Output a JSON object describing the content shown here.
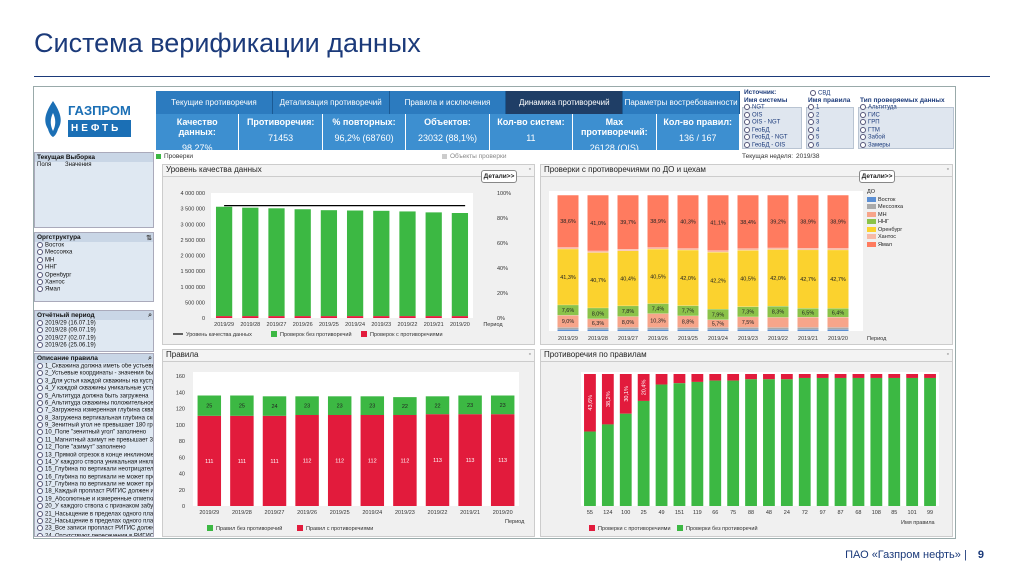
{
  "slide": {
    "title": "Система верификации данных",
    "footer": "ПАО «Газпром нефть»",
    "page": "9"
  },
  "logo": {
    "line1": "ГАЗПРОМ",
    "line2": "НЕФТЬ"
  },
  "tabs": [
    "Текущие противоречия",
    "Детализация противоречий",
    "Правила и исключения",
    "Динамика противоречий",
    "Параметры востребованности"
  ],
  "kpis": [
    {
      "label": "Качество данных:",
      "value": "98,27%"
    },
    {
      "label": "Противоречия:",
      "value": "71453"
    },
    {
      "label": "% повторных:",
      "value": "96,2% (68760)"
    },
    {
      "label": "Объектов:",
      "value": "23032 (88,1%)"
    },
    {
      "label": "Кол-во систем:",
      "value": "11"
    },
    {
      "label": "Max противоречий:",
      "value": "26128 (OIS)"
    },
    {
      "label": "Кол-во правил:",
      "value": "136 / 167"
    }
  ],
  "filters": {
    "source": {
      "label": "Источник:",
      "options": [
        "СВД"
      ]
    },
    "system": {
      "label": "Имя системы",
      "options": [
        "NGT",
        "OIS",
        "OIS - NGT",
        "ГеоБД",
        "ГеоБД - NGT",
        "ГеоБД - OIS"
      ]
    },
    "rule": {
      "label": "Имя правила",
      "options": [
        "1",
        "2",
        "3",
        "4",
        "5",
        "6"
      ]
    },
    "type": {
      "label": "Тип проверяемых данных",
      "options": [
        "Альтитуда",
        "ГИС",
        "ГРП",
        "ГТМ",
        "Забой",
        "Замеры"
      ]
    }
  },
  "status": {
    "checks": "Проверки",
    "objects": "Объекты проверки",
    "week_label": "Текущая неделя:",
    "week": "2019/38"
  },
  "left": {
    "current": {
      "title": "Текущая Выборка",
      "col1": "Поля",
      "col2": "Значения"
    },
    "org": {
      "title": "Оргструктура",
      "items": [
        "Восток",
        "Мессояха",
        "МН",
        "ННГ",
        "Оренбург",
        "Хантос",
        "Ямал"
      ]
    },
    "period": {
      "title": "Отчётный период",
      "items": [
        "2019/29 (16.07.19)",
        "2019/28 (09.07.19)",
        "2019/27 (02.07.19)",
        "2019/26 (25.06.19)"
      ]
    },
    "rules": {
      "title": "Описание правила",
      "items": [
        "1_Скважина должна иметь обе устьевые",
        "2_Устьевые координаты - значения был",
        "3_Для устья каждой скважины на кусту",
        "4_У каждой скважины уникальные устье",
        "5_Альтитуда должна быть загружена",
        "6_Альтитуда скважины положительное",
        "7_Загружена измеренная глубина сква",
        "8_Загружена вертикальная глубина сква",
        "9_Зенитный угол не превышает 180 гра",
        "10_Поле \"зенитный угол\" заполнено",
        "11_Магнитный азимут не превышает 36",
        "12_Поле \"азимут\" заполнено",
        "13_Прямой отрезок в конце инклиномет",
        "14_У каждого ствола уникальная инклин",
        "15_Глубина по вертикали неотрицатель",
        "16_Глубина по вертикали не может прев",
        "17_Глубина по вертикали не может прев",
        "18_Каждый пропласт РИГИС должен им",
        "19_Абсолютные и измеренные отметки",
        "20_У каждого ствола с признаком забу",
        "21_Насыщение в пределах одного пласт",
        "22_Насыщение в пределах одного пласт",
        "23_Все записи пропласт РИГИС должны",
        "24_Отсутствуют пересечения в РИГИС",
        "25_Поле сопутствующее заполнено для"
      ]
    }
  },
  "panels": {
    "quality": {
      "title": "Уровень качества данных",
      "details": "Детали>>",
      "legend": [
        "Уровень качества данных",
        "Проверок без противоречий",
        "Проверок с противоречиями"
      ],
      "xaxis": "Период"
    },
    "checks": {
      "title": "Проверки с противоречиями по ДО и цехам",
      "details": "Детали>>",
      "xaxis": "Период",
      "legend_title": "ДО"
    },
    "rules": {
      "title": "Правила",
      "legend": [
        "Правил без противоречий",
        "Правил с противоречиями"
      ],
      "xaxis": "Период"
    },
    "byrule": {
      "title": "Противоречия по правилам",
      "legend": [
        "Проверки с противоречиями",
        "Проверки без противоречий"
      ],
      "xaxis": "Имя правила"
    }
  },
  "chart_data": [
    {
      "type": "bar",
      "title": "Уровень качества данных",
      "categories": [
        "2019/29",
        "2019/28",
        "2019/27",
        "2019/26",
        "2019/25",
        "2019/24",
        "2019/23",
        "2019/22",
        "2019/21",
        "2019/20"
      ],
      "xlabel": "Период",
      "ylim": [
        0,
        4000000
      ],
      "yticks": [
        "0",
        "500 000",
        "1 000 000",
        "1 500 000",
        "2 000 000",
        "2 500 000",
        "3 000 000",
        "3 500 000",
        "4 000 000"
      ],
      "y2ticks": [
        "0%",
        "20%",
        "40%",
        "60%",
        "80%",
        "100%"
      ],
      "series": [
        {
          "name": "Проверок без противоречий",
          "color": "#3cb843",
          "values": [
            3500000,
            3470000,
            3450000,
            3420000,
            3390000,
            3380000,
            3370000,
            3350000,
            3320000,
            3300000
          ]
        },
        {
          "name": "Проверок с противоречиями",
          "color": "#e21b3c",
          "values": [
            60000,
            60000,
            60000,
            60000,
            60000,
            60000,
            60000,
            60000,
            60000,
            60000
          ]
        },
        {
          "name": "Уровень качества данных",
          "color": "#000000",
          "values": [
            98,
            98,
            98,
            98,
            98,
            98,
            98,
            98,
            98,
            98
          ]
        }
      ]
    },
    {
      "type": "bar",
      "title": "Проверки с противоречиями по ДО и цехам",
      "categories": [
        "2019/29",
        "2019/28",
        "2019/27",
        "2019/26",
        "2019/25",
        "2019/24",
        "2019/23",
        "2019/22",
        "2019/21",
        "2019/20"
      ],
      "xlabel": "Период",
      "ylim": [
        0,
        100
      ],
      "series": [
        {
          "name": "Восток",
          "color": "#5b8fd4",
          "values": [
            1.2,
            1.2,
            1.2,
            1.2,
            1.2,
            1.2,
            1.2,
            1.2,
            1.2,
            1.2
          ]
        },
        {
          "name": "Мессояха",
          "color": "#aaaaaa",
          "values": [
            1.5,
            1.5,
            1.5,
            1.5,
            1.5,
            1.5,
            1.5,
            1.5,
            1.5,
            1.5
          ]
        },
        {
          "name": "МН",
          "color": "#f7a58a",
          "values": [
            9.0,
            6.3,
            8.0,
            10.3,
            8.8,
            5.7,
            7.5,
            7.5,
            7.5,
            7.5
          ]
        },
        {
          "name": "ННГ",
          "color": "#8bc34a",
          "values": [
            7.6,
            8.0,
            7.8,
            7.4,
            7.7,
            7.9,
            7.3,
            8.3,
            6.5,
            6.4
          ]
        },
        {
          "name": "Оренбург",
          "color": "#fbd22e",
          "values": [
            41.3,
            40.7,
            40.4,
            40.5,
            42.0,
            42.2,
            40.5,
            42.0,
            42.7,
            42.7
          ]
        },
        {
          "name": "Хантос",
          "color": "#f7b9a6",
          "values": [
            1.2,
            1.2,
            1.2,
            1.2,
            1.2,
            1.2,
            1.2,
            1.2,
            1.2,
            1.2
          ]
        },
        {
          "name": "Ямал",
          "color": "#ff7b5f",
          "values": [
            38.6,
            41.0,
            39.7,
            38.9,
            40.3,
            41.1,
            38.4,
            39.2,
            38.9,
            38.9
          ]
        }
      ],
      "labels": {
        "top": [
          "38,6%",
          "41,0%",
          "39,7%",
          "38,9%",
          "40,3%",
          "41,1%",
          "38,4%",
          "39,2%",
          "38,9%",
          "38,9%"
        ],
        "mid": [
          "41,3%",
          "40,7%",
          "40,4%",
          "40,5%",
          "42,0%",
          "42,2%",
          "40,5%",
          "42,0%",
          "42,7%",
          "42,7%"
        ],
        "green": [
          "7,6%",
          "8,0%",
          "7,8%",
          "7,4%",
          "7,7%",
          "7,9%",
          "7,3%",
          "8,3%",
          "6,5%",
          "6,4%"
        ],
        "pink": [
          "9,0%",
          "6,3%",
          "8,0%",
          "10,3%",
          "8,8%",
          "5,7%",
          "7,5%",
          "",
          "",
          ""
        ]
      }
    },
    {
      "type": "bar",
      "title": "Правила",
      "categories": [
        "2019/29",
        "2019/28",
        "2019/27",
        "2019/26",
        "2019/25",
        "2019/24",
        "2019/23",
        "2019/22",
        "2019/21",
        "2019/20"
      ],
      "xlabel": "Период",
      "ylim": [
        0,
        160
      ],
      "yticks": [
        "0",
        "20",
        "40",
        "60",
        "80",
        "100",
        "120",
        "140",
        "160"
      ],
      "series": [
        {
          "name": "Правил с противоречиями",
          "color": "#e21b3c",
          "values": [
            111,
            111,
            111,
            112,
            112,
            112,
            112,
            113,
            113,
            113
          ]
        },
        {
          "name": "Правил без противоречий",
          "color": "#3cb843",
          "values": [
            25,
            25,
            24,
            23,
            23,
            23,
            22,
            22,
            23,
            23
          ]
        }
      ]
    },
    {
      "type": "bar",
      "title": "Противоречия по правилам",
      "categories": [
        "55",
        "124",
        "100",
        "25",
        "49",
        "151",
        "119",
        "66",
        "75",
        "88",
        "48",
        "24",
        "72",
        "97",
        "87",
        "68",
        "108",
        "85",
        "101",
        "99"
      ],
      "xlabel": "Имя правила",
      "ylim": [
        0,
        100
      ],
      "series": [
        {
          "name": "Проверки с противоречиями",
          "color": "#e21b3c",
          "values": [
            43.6,
            38.2,
            30.1,
            20.4,
            8,
            7,
            6,
            5,
            5,
            4,
            4,
            4,
            3,
            3,
            3,
            3,
            3,
            3,
            3,
            3
          ]
        },
        {
          "name": "Проверки без противоречий",
          "color": "#3cb843",
          "values": [
            56.4,
            61.8,
            69.9,
            79.6,
            92,
            93,
            94,
            95,
            95,
            96,
            96,
            96,
            97,
            97,
            97,
            97,
            97,
            97,
            97,
            97
          ]
        }
      ],
      "labels": [
        "43,6%",
        "38,2%",
        "30,1%",
        "20,4%"
      ]
    }
  ]
}
